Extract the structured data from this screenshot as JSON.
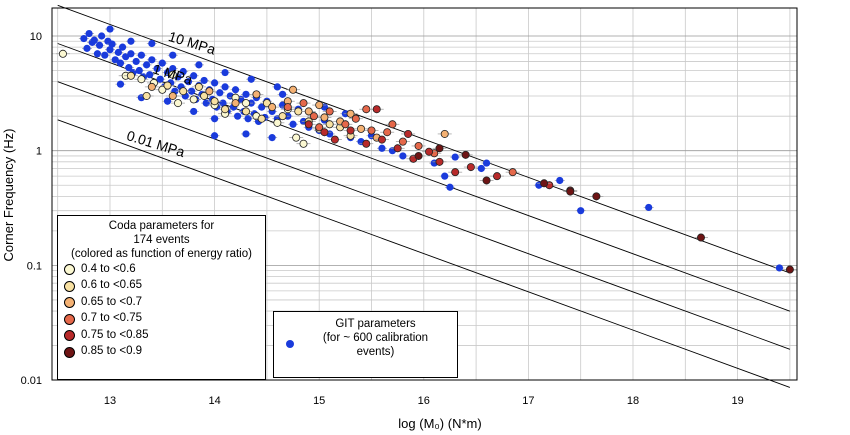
{
  "chart_data": {
    "type": "scatter",
    "xlabel": "log (M₀) (N*m)",
    "ylabel": "Corner Frequency (Hz)",
    "xlim": [
      12.45,
      19.6
    ],
    "ylim": [
      0.01,
      17
    ],
    "yscale": "log",
    "grid": true,
    "x_ticks": [
      13,
      14,
      15,
      16,
      17,
      18,
      19
    ],
    "x_tick_labels": [
      "13",
      "14",
      "15",
      "16",
      "17",
      "18",
      "19"
    ],
    "y_ticks": [
      0.01,
      0.1,
      1,
      10
    ],
    "y_tick_labels": [
      "0.01",
      "0.1",
      "1",
      "10"
    ],
    "stress_drop_lines": [
      {
        "label": "10 MPa",
        "fc_at_log_m0_12_5": 18.5
      },
      {
        "label": "1 MPa",
        "fc_at_log_m0_12_5": 8.6
      },
      {
        "label": "",
        "fc_at_log_m0_12_5": 4.0
      },
      {
        "label": "0.01 MPa",
        "fc_at_log_m0_12_5": 1.86
      }
    ],
    "coda_legend": {
      "title_lines": [
        "Coda parameters for",
        "174 events",
        "(colored as function of  energy ratio)"
      ],
      "bins": [
        {
          "label": "0.4 to <0.6",
          "color": "#fbf8d2"
        },
        {
          "label": "0.6 to <0.65",
          "color": "#f8e1a2"
        },
        {
          "label": "0.65 to <0.7",
          "color": "#f4b173"
        },
        {
          "label": "0.7 to <0.75",
          "color": "#e5684a"
        },
        {
          "label": "0.75 to <0.85",
          "color": "#b82a2a"
        },
        {
          "label": "0.85 to <0.9",
          "color": "#6e1414"
        }
      ]
    },
    "git_legend": {
      "lines": [
        "GIT parameters",
        "(for ~ 600 calibration",
        "events)"
      ],
      "color": "#1a3bdc"
    },
    "series": [
      {
        "name": "GIT parameters",
        "color": "#1a3bdc",
        "points": [
          [
            12.75,
            9.5
          ],
          [
            12.78,
            7.8
          ],
          [
            12.8,
            10.5
          ],
          [
            12.83,
            8.8
          ],
          [
            12.85,
            9.2
          ],
          [
            12.88,
            7.0
          ],
          [
            12.9,
            8.3
          ],
          [
            12.92,
            10.0
          ],
          [
            12.95,
            6.8
          ],
          [
            12.98,
            9.0
          ],
          [
            13.0,
            7.6
          ],
          [
            13.02,
            8.5
          ],
          [
            13.05,
            6.2
          ],
          [
            13.08,
            7.2
          ],
          [
            13.1,
            5.8
          ],
          [
            13.12,
            8.0
          ],
          [
            13.15,
            6.6
          ],
          [
            13.18,
            5.3
          ],
          [
            13.2,
            7.0
          ],
          [
            13.22,
            4.8
          ],
          [
            13.25,
            6.0
          ],
          [
            13.28,
            5.0
          ],
          [
            13.3,
            6.8
          ],
          [
            13.32,
            4.4
          ],
          [
            13.35,
            5.6
          ],
          [
            13.38,
            4.6
          ],
          [
            13.4,
            6.2
          ],
          [
            13.42,
            3.9
          ],
          [
            13.45,
            5.2
          ],
          [
            13.48,
            4.2
          ],
          [
            13.5,
            5.8
          ],
          [
            13.52,
            3.6
          ],
          [
            13.55,
            4.8
          ],
          [
            13.58,
            3.9
          ],
          [
            13.6,
            5.2
          ],
          [
            13.62,
            3.3
          ],
          [
            13.65,
            4.4
          ],
          [
            13.68,
            3.6
          ],
          [
            13.7,
            4.9
          ],
          [
            13.72,
            3.0
          ],
          [
            13.75,
            4.0
          ],
          [
            13.78,
            3.3
          ],
          [
            13.8,
            4.5
          ],
          [
            13.82,
            2.8
          ],
          [
            13.85,
            3.7
          ],
          [
            13.88,
            3.1
          ],
          [
            13.9,
            4.1
          ],
          [
            13.92,
            2.6
          ],
          [
            13.95,
            3.4
          ],
          [
            13.98,
            2.8
          ],
          [
            14.0,
            3.9
          ],
          [
            14.02,
            2.4
          ],
          [
            14.05,
            3.2
          ],
          [
            14.08,
            2.6
          ],
          [
            14.1,
            3.6
          ],
          [
            14.12,
            2.2
          ],
          [
            14.15,
            3.0
          ],
          [
            14.18,
            2.4
          ],
          [
            14.2,
            3.4
          ],
          [
            14.22,
            2.0
          ],
          [
            14.25,
            2.8
          ],
          [
            14.28,
            2.2
          ],
          [
            14.3,
            3.1
          ],
          [
            14.32,
            1.9
          ],
          [
            14.35,
            2.6
          ],
          [
            14.38,
            2.1
          ],
          [
            14.4,
            2.9
          ],
          [
            14.42,
            1.8
          ],
          [
            14.45,
            2.4
          ],
          [
            14.48,
            1.95
          ],
          [
            14.5,
            2.7
          ],
          [
            14.55,
            2.2
          ],
          [
            14.6,
            1.9
          ],
          [
            14.65,
            2.5
          ],
          [
            14.7,
            2.0
          ],
          [
            14.75,
            1.7
          ],
          [
            14.8,
            2.3
          ],
          [
            14.85,
            1.8
          ],
          [
            14.9,
            1.6
          ],
          [
            14.95,
            2.0
          ],
          [
            15.0,
            1.5
          ],
          [
            15.05,
            1.85
          ],
          [
            15.1,
            1.4
          ],
          [
            15.2,
            1.6
          ],
          [
            15.3,
            1.3
          ],
          [
            15.4,
            1.2
          ],
          [
            15.5,
            1.35
          ],
          [
            15.6,
            1.05
          ],
          [
            15.7,
            1.0
          ],
          [
            15.8,
            0.9
          ],
          [
            13.0,
            11.5
          ],
          [
            13.2,
            9.0
          ],
          [
            13.4,
            8.6
          ],
          [
            13.1,
            3.8
          ],
          [
            13.3,
            2.9
          ],
          [
            13.55,
            2.7
          ],
          [
            13.8,
            2.2
          ],
          [
            14.0,
            1.9
          ],
          [
            14.0,
            1.35
          ],
          [
            14.3,
            1.4
          ],
          [
            14.55,
            1.3
          ],
          [
            13.6,
            6.8
          ],
          [
            13.85,
            5.6
          ],
          [
            14.1,
            4.8
          ],
          [
            14.35,
            4.2
          ],
          [
            14.6,
            3.6
          ],
          [
            14.65,
            3.1
          ],
          [
            14.85,
            2.6
          ],
          [
            15.05,
            2.4
          ],
          [
            15.25,
            2.1
          ],
          [
            16.1,
            0.78
          ],
          [
            16.2,
            0.6
          ],
          [
            16.25,
            0.48
          ],
          [
            16.3,
            0.88
          ],
          [
            16.55,
            0.7
          ],
          [
            16.6,
            0.78
          ],
          [
            17.1,
            0.5
          ],
          [
            17.3,
            0.55
          ],
          [
            17.5,
            0.3
          ],
          [
            18.15,
            0.32
          ],
          [
            19.4,
            0.095
          ]
        ]
      },
      {
        "name": "Coda 0.4 to <0.6",
        "color": "#fbf8d2",
        "points": [
          [
            12.55,
            7.0
          ],
          [
            13.3,
            4.2
          ],
          [
            13.5,
            3.4
          ],
          [
            13.65,
            2.6
          ],
          [
            13.8,
            2.8
          ],
          [
            14.0,
            2.5
          ],
          [
            14.2,
            2.9
          ],
          [
            14.4,
            2.0
          ],
          [
            14.6,
            1.75
          ],
          [
            14.78,
            1.3
          ],
          [
            14.85,
            1.15
          ],
          [
            15.0,
            1.55
          ],
          [
            13.15,
            4.5
          ],
          [
            13.42,
            3.9
          ],
          [
            13.6,
            4.6
          ],
          [
            14.1,
            2.1
          ],
          [
            14.3,
            2.6
          ],
          [
            14.7,
            2.3
          ]
        ]
      },
      {
        "name": "Coda 0.6 to <0.65",
        "color": "#f8e1a2",
        "points": [
          [
            13.2,
            4.5
          ],
          [
            13.35,
            3.0
          ],
          [
            13.55,
            3.7
          ],
          [
            13.7,
            3.3
          ],
          [
            13.9,
            3.0
          ],
          [
            14.1,
            2.3
          ],
          [
            14.3,
            2.2
          ],
          [
            14.5,
            2.6
          ],
          [
            14.65,
            2.0
          ],
          [
            14.8,
            2.2
          ],
          [
            15.1,
            1.7
          ],
          [
            15.3,
            1.35
          ],
          [
            13.85,
            3.6
          ],
          [
            14.0,
            2.7
          ],
          [
            14.45,
            1.9
          ],
          [
            14.9,
            1.8
          ],
          [
            15.2,
            1.6
          ]
        ]
      },
      {
        "name": "Coda 0.65 to <0.7",
        "color": "#f4b173",
        "points": [
          [
            13.4,
            3.6
          ],
          [
            13.6,
            3.0
          ],
          [
            13.95,
            3.3
          ],
          [
            14.2,
            2.6
          ],
          [
            14.4,
            3.1
          ],
          [
            14.55,
            2.4
          ],
          [
            14.7,
            2.7
          ],
          [
            14.9,
            2.2
          ],
          [
            15.05,
            1.95
          ],
          [
            15.2,
            1.8
          ],
          [
            15.4,
            1.55
          ],
          [
            15.55,
            1.3
          ],
          [
            16.2,
            1.4
          ],
          [
            14.75,
            3.4
          ],
          [
            15.0,
            2.5
          ],
          [
            15.3,
            2.1
          ]
        ]
      },
      {
        "name": "Coda 0.7 to <0.75",
        "color": "#e5684a",
        "points": [
          [
            14.7,
            2.4
          ],
          [
            14.85,
            2.6
          ],
          [
            14.95,
            2.0
          ],
          [
            15.1,
            2.2
          ],
          [
            15.25,
            1.7
          ],
          [
            15.35,
            1.9
          ],
          [
            15.5,
            1.5
          ],
          [
            15.65,
            1.45
          ],
          [
            15.8,
            1.2
          ],
          [
            15.95,
            1.1
          ],
          [
            16.1,
            0.95
          ],
          [
            16.85,
            0.65
          ],
          [
            15.0,
            1.6
          ],
          [
            15.45,
            2.3
          ],
          [
            15.7,
            1.7
          ]
        ]
      },
      {
        "name": "Coda 0.75 to <0.85",
        "color": "#b82a2a",
        "points": [
          [
            14.9,
            1.7
          ],
          [
            15.05,
            1.45
          ],
          [
            15.15,
            1.25
          ],
          [
            15.3,
            1.5
          ],
          [
            15.45,
            1.15
          ],
          [
            15.6,
            1.25
          ],
          [
            15.75,
            1.05
          ],
          [
            15.9,
            0.85
          ],
          [
            16.05,
            0.98
          ],
          [
            16.15,
            0.8
          ],
          [
            16.3,
            0.65
          ],
          [
            16.45,
            0.72
          ],
          [
            16.7,
            0.6
          ],
          [
            17.2,
            0.5
          ],
          [
            17.4,
            0.45
          ],
          [
            15.55,
            2.3
          ],
          [
            15.85,
            1.4
          ]
        ]
      },
      {
        "name": "Coda 0.85 to <0.9",
        "color": "#6e1414",
        "points": [
          [
            15.95,
            0.9
          ],
          [
            16.15,
            1.05
          ],
          [
            16.4,
            0.92
          ],
          [
            16.6,
            0.55
          ],
          [
            17.15,
            0.52
          ],
          [
            17.4,
            0.44
          ],
          [
            17.65,
            0.4
          ],
          [
            18.65,
            0.175
          ],
          [
            19.5,
            0.092
          ]
        ]
      }
    ]
  }
}
